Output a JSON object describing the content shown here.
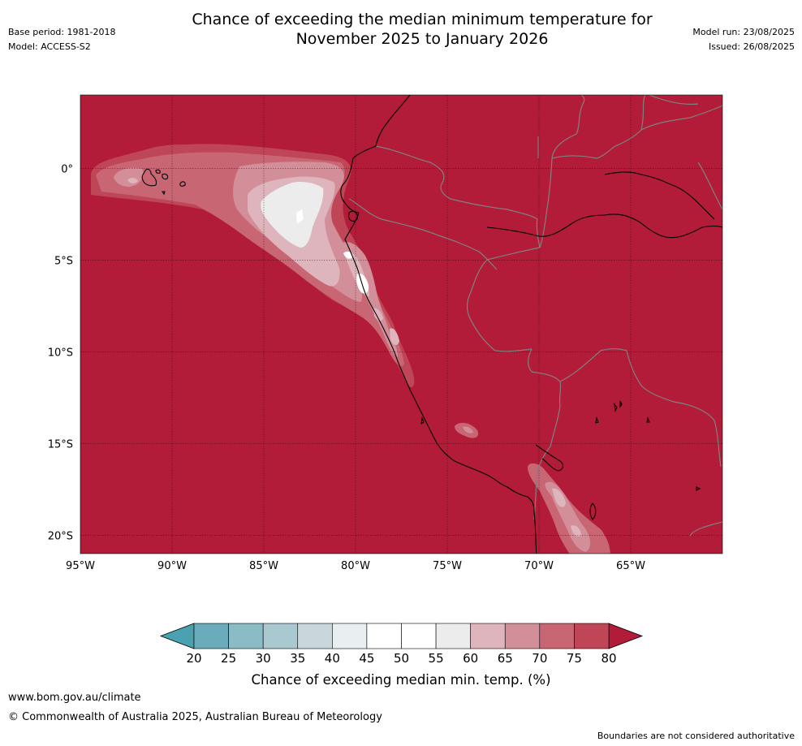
{
  "header": {
    "title_line1": "Chance of exceeding the median minimum temperature for",
    "title_line2": "November 2025 to January 2026",
    "base_period": "Base period: 1981-2018",
    "model": "Model: ACCESS-S2",
    "model_run": "Model run: 23/08/2025",
    "issued": "Issued: 26/08/2025"
  },
  "map": {
    "background_color": "#b31c38",
    "border_color": "#808080",
    "coast_color": "#000000",
    "lon_range": [
      -95,
      -60
    ],
    "lat_range": [
      -21,
      4
    ],
    "lat_labels": [
      "0°",
      "5°S",
      "10°S",
      "15°S",
      "20°S"
    ],
    "lat_values": [
      0,
      -5,
      -10,
      -15,
      -20
    ],
    "lon_labels": [
      "95°W",
      "90°W",
      "85°W",
      "80°W",
      "75°W",
      "70°W",
      "65°W"
    ],
    "lon_values": [
      -95,
      -90,
      -85,
      -80,
      -75,
      -70,
      -65
    ]
  },
  "colorbar": {
    "label": "Chance of exceeding median min. temp. (%)",
    "ticks": [
      "20",
      "25",
      "30",
      "35",
      "40",
      "45",
      "50",
      "55",
      "60",
      "65",
      "70",
      "75",
      "80"
    ],
    "colors": [
      "#6aacb9",
      "#8bbbc5",
      "#a9c8cf",
      "#c9d7dc",
      "#e9eef0",
      "#ffffff",
      "#ffffff",
      "#ececec",
      "#dfb5bd",
      "#d38f99",
      "#c86674",
      "#bf4656"
    ],
    "under_color": "#4aa2b0",
    "over_color": "#b31c38"
  },
  "footer": {
    "url": "www.bom.gov.au/climate",
    "copyright": "© Commonwealth of Australia 2025, Australian Bureau of Meteorology",
    "disclaimer": "Boundaries are not considered authoritative"
  }
}
